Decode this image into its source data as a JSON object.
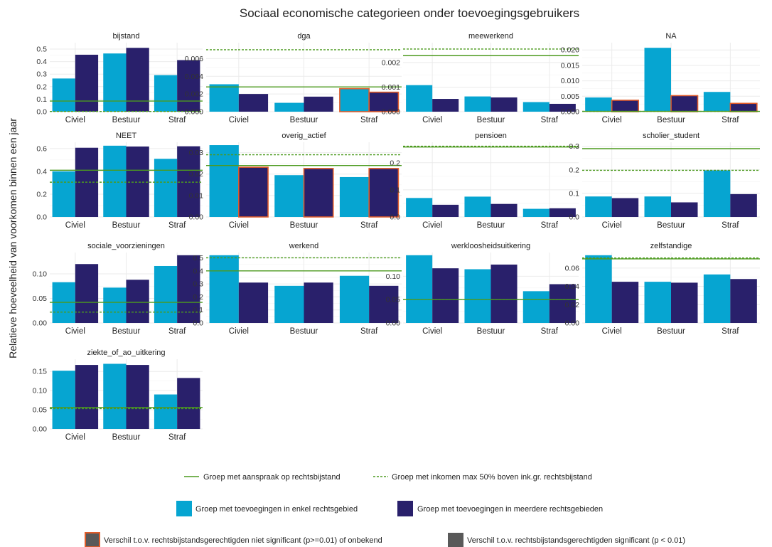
{
  "chart_data": {
    "type": "bar",
    "title": "Sociaal economische categorieen onder toevoegingsgebruikers",
    "ylabel": "Relatieve hoeveelheid van voorkomen binnen een jaar",
    "xlabel": "",
    "categories": [
      "Civiel",
      "Bestuur",
      "Straf"
    ],
    "series_names": [
      "Groep met toevoegingen in enkel rechtsgebied",
      "Groep met toevoegingen in meerdere rechtsgebieden"
    ],
    "colors": {
      "single": "#06a5d1",
      "multiple": "#29206b",
      "reference": "#4c9a1f",
      "not_significant_border": "#e05c2a",
      "significant_border": "#595959",
      "grid": "#ebebeb"
    },
    "reference_lines": {
      "solid": "Groep met aanspraak op rechtsbijstand",
      "dashed": "Groep met inkomen max 50% boven ink.gr. rechtsbijstand"
    },
    "significance": {
      "not_significant": "Verschil t.o.v. rechtsbijstandsgerechtigden niet significant (p>=0.01) of onbekend",
      "significant": "Verschil t.o.v. rechtsbijstandsgerechtigden significant (p < 0.01)"
    },
    "legend_position": "bottom",
    "grid": true,
    "panels": [
      {
        "name": "bijstand",
        "ylim": [
          0,
          0.53
        ],
        "ticks": [
          0,
          0.1,
          0.2,
          0.3,
          0.4,
          0.5
        ],
        "tick_labels": [
          "0.0",
          "0.1",
          "0.2",
          "0.3",
          "0.4",
          "0.5"
        ],
        "single": [
          0.265,
          0.465,
          0.292
        ],
        "multiple": [
          0.455,
          0.51,
          0.412
        ],
        "single_ns": [
          false,
          false,
          false
        ],
        "multiple_ns": [
          false,
          false,
          false
        ],
        "ref_solid": 0.085,
        "ref_dashed": 0.002
      },
      {
        "name": "dga",
        "ylim": [
          0,
          0.0075
        ],
        "ticks": [
          0,
          0.002,
          0.004,
          0.006
        ],
        "tick_labels": [
          "0.000",
          "0.002",
          "0.004",
          "0.006"
        ],
        "single": [
          0.0031,
          0.001,
          0.0026
        ],
        "multiple": [
          0.002,
          0.0017,
          0.0022
        ],
        "single_ns": [
          false,
          false,
          true
        ],
        "multiple_ns": [
          false,
          false,
          true
        ],
        "ref_solid": 0.0028,
        "ref_dashed": 0.007
      },
      {
        "name": "meewerkend",
        "ylim": [
          0,
          0.0027
        ],
        "ticks": [
          0,
          0.001,
          0.002
        ],
        "tick_labels": [
          "0.000",
          "0.001",
          "0.002"
        ],
        "single": [
          0.00108,
          0.00062,
          0.00039
        ],
        "multiple": [
          0.00052,
          0.00058,
          0.00032
        ],
        "single_ns": [
          false,
          false,
          false
        ],
        "multiple_ns": [
          false,
          false,
          false
        ],
        "ref_solid": 0.00228,
        "ref_dashed": 0.00255
      },
      {
        "name": "NA",
        "ylim": [
          0,
          0.0215
        ],
        "ticks": [
          0,
          0.005,
          0.01,
          0.015,
          0.02
        ],
        "tick_labels": [
          "0.000",
          "0.005",
          "0.010",
          "0.015",
          "0.020"
        ],
        "single": [
          0.0046,
          0.0207,
          0.0064
        ],
        "multiple": [
          0.0037,
          0.0052,
          0.0027
        ],
        "single_ns": [
          false,
          false,
          false
        ],
        "multiple_ns": [
          true,
          true,
          true
        ],
        "ref_solid": 0.0001,
        "ref_dashed": 0.0001
      },
      {
        "name": "NEET",
        "ylim": [
          0,
          0.63
        ],
        "ticks": [
          0,
          0.2,
          0.4,
          0.6
        ],
        "tick_labels": [
          "0.0",
          "0.2",
          "0.4",
          "0.6"
        ],
        "single": [
          0.4,
          0.625,
          0.51
        ],
        "multiple": [
          0.607,
          0.618,
          0.62
        ],
        "single_ns": [
          false,
          false,
          false
        ],
        "multiple_ns": [
          false,
          false,
          false
        ],
        "ref_solid": 0.41,
        "ref_dashed": 0.305
      },
      {
        "name": "overig_actief",
        "ylim": [
          0,
          0.0335
        ],
        "ticks": [
          0,
          0.01,
          0.02,
          0.03
        ],
        "tick_labels": [
          "0.00",
          "0.01",
          "0.02",
          "0.03"
        ],
        "single": [
          0.0335,
          0.0195,
          0.0186
        ],
        "multiple": [
          0.0232,
          0.0226,
          0.0226
        ],
        "single_ns": [
          false,
          false,
          false
        ],
        "multiple_ns": [
          true,
          true,
          true
        ],
        "ref_solid": 0.024,
        "ref_dashed": 0.029
      },
      {
        "name": "pensioen",
        "ylim": [
          0,
          0.265
        ],
        "ticks": [
          0,
          0.1,
          0.2
        ],
        "tick_labels": [
          "0.0",
          "0.1",
          "0.2"
        ],
        "single": [
          0.07,
          0.075,
          0.03
        ],
        "multiple": [
          0.045,
          0.048,
          0.032
        ],
        "single_ns": [
          false,
          false,
          false
        ],
        "multiple_ns": [
          false,
          false,
          false
        ],
        "ref_solid": 0.258,
        "ref_dashed": 0.261
      },
      {
        "name": "scholier_student",
        "ylim": [
          0,
          0.305
        ],
        "ticks": [
          0,
          0.1,
          0.2,
          0.3
        ],
        "tick_labels": [
          "0.0",
          "0.1",
          "0.2",
          "0.3"
        ],
        "single": [
          0.087,
          0.087,
          0.198
        ],
        "multiple": [
          0.08,
          0.062,
          0.097
        ],
        "single_ns": [
          false,
          false,
          false
        ],
        "multiple_ns": [
          false,
          false,
          false
        ],
        "ref_solid": 0.29,
        "ref_dashed": 0.198
      },
      {
        "name": "sociale_voorzieningen",
        "ylim": [
          0,
          0.138
        ],
        "ticks": [
          0,
          0.05,
          0.1
        ],
        "tick_labels": [
          "0.00",
          "0.05",
          "0.10"
        ],
        "single": [
          0.083,
          0.072,
          0.116
        ],
        "multiple": [
          0.12,
          0.088,
          0.138
        ],
        "single_ns": [
          false,
          false,
          false
        ],
        "multiple_ns": [
          false,
          false,
          false
        ],
        "ref_solid": 0.042,
        "ref_dashed": 0.022
      },
      {
        "name": "werkend",
        "ylim": [
          0,
          0.52
        ],
        "ticks": [
          0,
          0.1,
          0.2,
          0.3,
          0.4,
          0.5
        ],
        "tick_labels": [
          "0.0",
          "0.1",
          "0.2",
          "0.3",
          "0.4",
          "0.5"
        ],
        "single": [
          0.52,
          0.285,
          0.362
        ],
        "multiple": [
          0.31,
          0.31,
          0.285
        ],
        "single_ns": [
          false,
          false,
          false
        ],
        "multiple_ns": [
          false,
          false,
          false
        ],
        "ref_solid": 0.4,
        "ref_dashed": 0.5
      },
      {
        "name": "werkloosheidsuitkering",
        "ylim": [
          0,
          0.145
        ],
        "ticks": [
          0,
          0.05,
          0.1
        ],
        "tick_labels": [
          "0.00",
          "0.05",
          "0.10"
        ],
        "single": [
          0.145,
          0.115,
          0.068
        ],
        "multiple": [
          0.117,
          0.125,
          0.083
        ],
        "single_ns": [
          false,
          false,
          false
        ],
        "multiple_ns": [
          false,
          false,
          false
        ],
        "ref_solid": 0.05,
        "ref_dashed": 0.05
      },
      {
        "name": "zelfstandige",
        "ylim": [
          0,
          0.074
        ],
        "ticks": [
          0,
          0.02,
          0.04,
          0.06
        ],
        "tick_labels": [
          "0.00",
          "0.02",
          "0.04",
          "0.06"
        ],
        "single": [
          0.074,
          0.045,
          0.053
        ],
        "multiple": [
          0.045,
          0.044,
          0.048
        ],
        "single_ns": [
          false,
          false,
          false
        ],
        "multiple_ns": [
          false,
          false,
          false
        ],
        "ref_solid": 0.07,
        "ref_dashed": 0.071
      },
      {
        "name": "ziekte_of_ao_uitkering",
        "ylim": [
          0,
          0.175
        ],
        "ticks": [
          0,
          0.05,
          0.1,
          0.15
        ],
        "tick_labels": [
          "0.00",
          "0.05",
          "0.10",
          "0.15"
        ],
        "single": [
          0.152,
          0.17,
          0.09
        ],
        "multiple": [
          0.167,
          0.167,
          0.133
        ],
        "single_ns": [
          false,
          false,
          false
        ],
        "multiple_ns": [
          false,
          false,
          false
        ],
        "ref_solid": 0.056,
        "ref_dashed": 0.053
      }
    ]
  }
}
